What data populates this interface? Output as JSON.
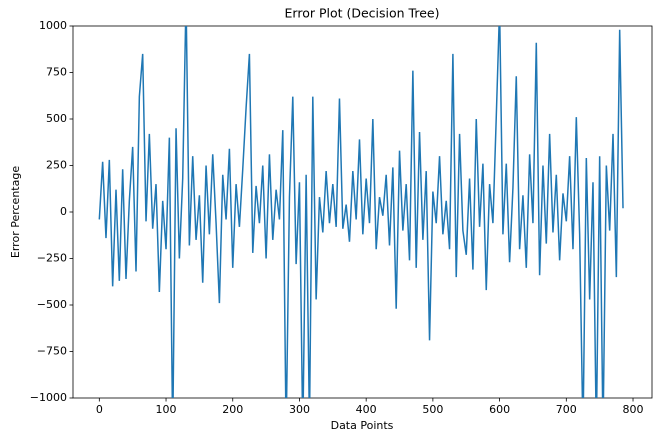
{
  "chart_data": {
    "type": "line",
    "title": "Error Plot (Decision Tree)",
    "x_label": "Data Points",
    "y_label": "Error Percentage",
    "x": [
      0,
      5,
      10,
      15,
      20,
      25,
      30,
      35,
      40,
      45,
      50,
      55,
      60,
      65,
      70,
      75,
      80,
      85,
      90,
      95,
      100,
      105,
      110,
      115,
      120,
      125,
      130,
      135,
      140,
      145,
      150,
      155,
      160,
      165,
      170,
      175,
      180,
      185,
      190,
      195,
      200,
      205,
      210,
      215,
      220,
      225,
      230,
      235,
      240,
      245,
      250,
      255,
      260,
      265,
      270,
      275,
      280,
      285,
      290,
      295,
      300,
      305,
      310,
      315,
      320,
      325,
      330,
      335,
      340,
      345,
      350,
      355,
      360,
      365,
      370,
      375,
      380,
      385,
      390,
      395,
      400,
      405,
      410,
      415,
      420,
      425,
      430,
      435,
      440,
      445,
      450,
      455,
      460,
      465,
      470,
      475,
      480,
      485,
      490,
      495,
      500,
      505,
      510,
      515,
      520,
      525,
      530,
      535,
      540,
      545,
      550,
      555,
      560,
      565,
      570,
      575,
      580,
      585,
      590,
      595,
      600,
      605,
      610,
      615,
      620,
      625,
      630,
      635,
      640,
      645,
      650,
      655,
      660,
      665,
      670,
      675,
      680,
      685,
      690,
      695,
      700,
      705,
      710,
      715,
      720,
      725,
      730,
      735,
      740,
      745,
      750,
      755,
      760,
      765,
      770,
      775,
      780,
      785
    ],
    "series": [
      {
        "color": "#1f77b4",
        "values": [
          -40,
          270,
          -140,
          280,
          -400,
          120,
          -370,
          230,
          -360,
          60,
          350,
          -320,
          620,
          850,
          -50,
          420,
          -90,
          150,
          -430,
          60,
          -200,
          400,
          -1200,
          450,
          -250,
          180,
          1150,
          -180,
          300,
          -150,
          90,
          -380,
          250,
          -120,
          310,
          -60,
          -490,
          200,
          -40,
          340,
          -300,
          150,
          -80,
          230,
          560,
          850,
          -220,
          140,
          -60,
          250,
          -250,
          310,
          -150,
          120,
          -40,
          440,
          -1200,
          80,
          620,
          -280,
          160,
          -1200,
          200,
          -1150,
          620,
          -470,
          80,
          -110,
          220,
          -60,
          150,
          -80,
          610,
          -90,
          40,
          -160,
          220,
          -40,
          390,
          -120,
          180,
          -60,
          500,
          -200,
          80,
          -20,
          200,
          -180,
          240,
          -520,
          330,
          -100,
          150,
          -260,
          760,
          -300,
          430,
          -150,
          220,
          -690,
          110,
          -60,
          300,
          -120,
          60,
          -200,
          850,
          -350,
          420,
          -100,
          -230,
          180,
          -310,
          500,
          -80,
          260,
          -420,
          150,
          -60,
          510,
          1100,
          -120,
          260,
          -270,
          130,
          730,
          -200,
          90,
          -300,
          310,
          -60,
          910,
          -340,
          250,
          -170,
          420,
          -110,
          200,
          -260,
          100,
          -50,
          300,
          -200,
          510,
          -120,
          -1200,
          290,
          -470,
          160,
          -1200,
          300,
          -1200,
          250,
          -100,
          420,
          -350,
          980,
          20
        ]
      }
    ],
    "xlim": [
      -39.45,
      828.45
    ],
    "xticks": [
      0,
      100,
      200,
      300,
      400,
      500,
      600,
      700,
      800
    ],
    "ylim": [
      -1000,
      1000
    ],
    "yticks": [
      {
        "value": -1000,
        "label": "−1000"
      },
      {
        "value": -750,
        "label": "−750"
      },
      {
        "value": -500,
        "label": "−500"
      },
      {
        "value": -250,
        "label": "−250"
      },
      0,
      250,
      500,
      750,
      1000
    ]
  }
}
